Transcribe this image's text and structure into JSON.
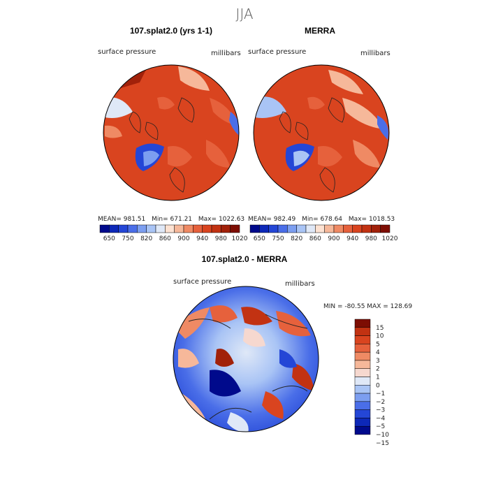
{
  "title": "JJA",
  "colors": {
    "pressure_scale": [
      "#000a8c",
      "#0d28b8",
      "#2446d6",
      "#4a6ee8",
      "#7c9ef0",
      "#a9c4f5",
      "#dfe8f7",
      "#fde2d2",
      "#f6b89a",
      "#ef8a64",
      "#e6613c",
      "#d9441f",
      "#c23212",
      "#a1210a",
      "#7d0d03"
    ],
    "diff_scale": [
      "#000a8c",
      "#0d28b8",
      "#2446d6",
      "#4a6ee8",
      "#7c9ef0",
      "#a9c4f5",
      "#dfe8f7",
      "#f6d8cf",
      "#f6b89a",
      "#ef8a64",
      "#e6613c",
      "#d9441f",
      "#c23212",
      "#7d0d03"
    ],
    "field_main": "#d9441f",
    "field_mid": "#e6613c",
    "field_low": "#2446d6",
    "field_light": "#a9c4f5"
  },
  "chart_data": [
    {
      "type": "heatmap",
      "panel_title": "107.splat2.0 (yrs 1-1)",
      "variable": "surface pressure",
      "units": "millibars",
      "stats": {
        "mean_label": "MEAN=",
        "mean": "981.51",
        "min_label": "Min=",
        "min": "671.21",
        "max_label": "Max=",
        "max": "1022.63"
      },
      "colorbar_ticks": [
        "650",
        "750",
        "820",
        "860",
        "900",
        "940",
        "980",
        "1020"
      ]
    },
    {
      "type": "heatmap",
      "panel_title": "MERRA",
      "variable": "surface pressure",
      "units": "millibars",
      "stats": {
        "mean_label": "MEAN=",
        "mean": "982.49",
        "min_label": "Min=",
        "min": "678.64",
        "max_label": "Max=",
        "max": "1018.53"
      },
      "colorbar_ticks": [
        "650",
        "750",
        "820",
        "860",
        "900",
        "940",
        "980",
        "1020"
      ]
    },
    {
      "type": "heatmap",
      "panel_title": "107.splat2.0 - MERRA",
      "variable": "surface pressure",
      "units": "millibars",
      "stats_text": "MIN = -80.55 MAX = 128.69",
      "colorbar_ticks": [
        "15",
        "10",
        "5",
        "4",
        "3",
        "2",
        "1",
        "0",
        "−1",
        "−2",
        "−3",
        "−4",
        "−5",
        "−10",
        "−15"
      ]
    }
  ]
}
